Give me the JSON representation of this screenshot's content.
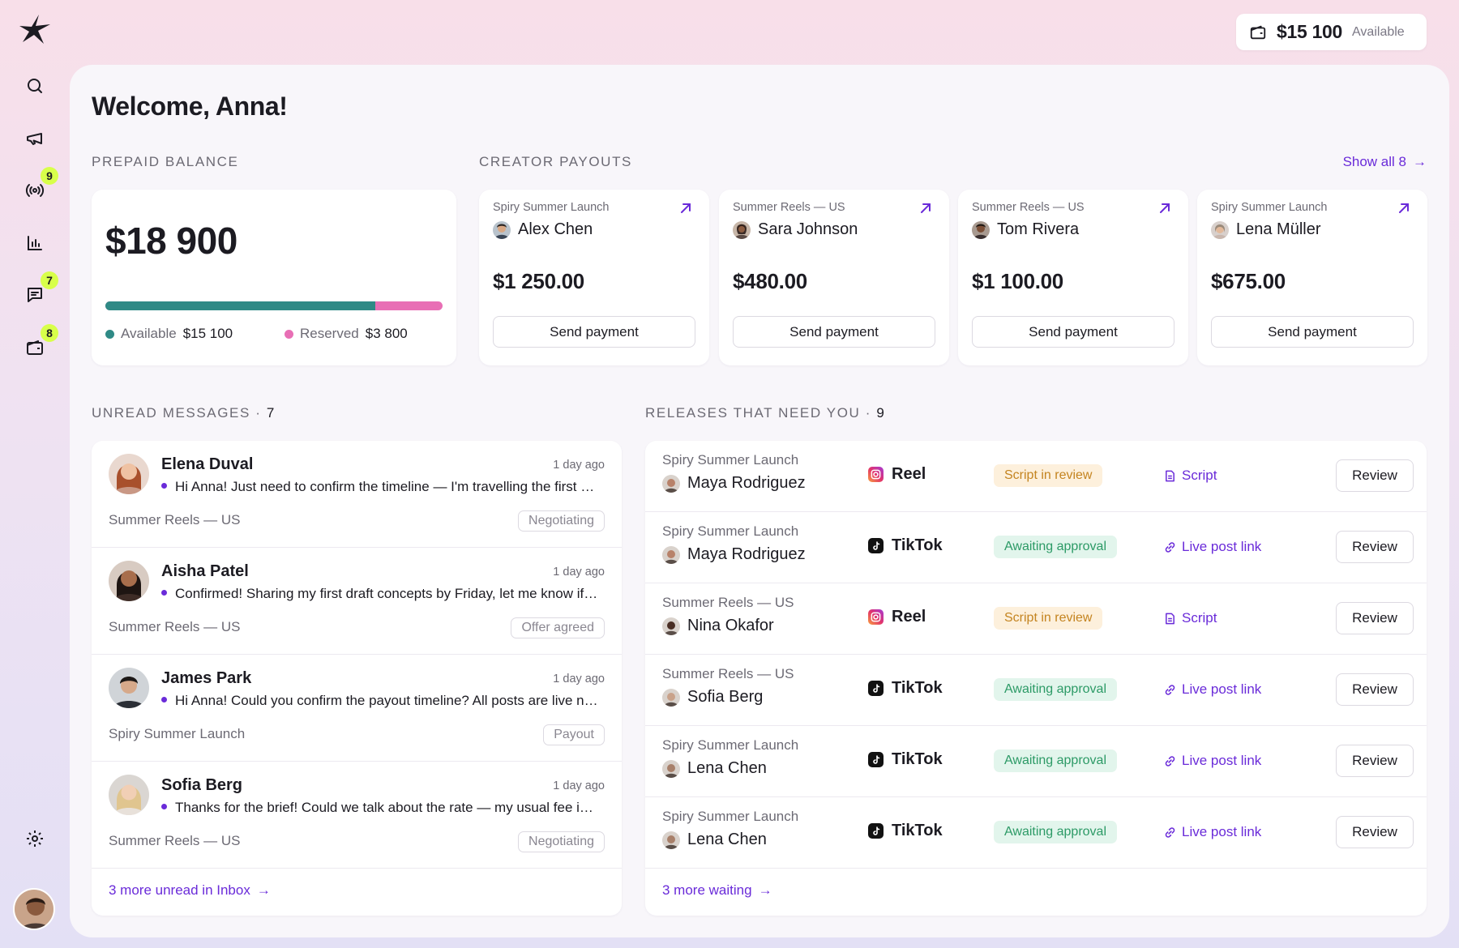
{
  "sidebar": {
    "logo": "star-logo",
    "items": [
      {
        "name": "search",
        "icon": "search-icon",
        "badge": null
      },
      {
        "name": "campaigns",
        "icon": "megaphone-icon",
        "badge": null
      },
      {
        "name": "broadcast",
        "icon": "broadcast-icon",
        "badge": "9"
      },
      {
        "name": "analytics",
        "icon": "bar-chart-icon",
        "badge": null
      },
      {
        "name": "messages",
        "icon": "message-icon",
        "badge": "7"
      },
      {
        "name": "wallet",
        "icon": "wallet-icon",
        "badge": "8"
      }
    ],
    "settings_icon": "gear-icon"
  },
  "top_balance": {
    "amount": "$15 100",
    "label": "Available"
  },
  "welcome": "Welcome, Anna!",
  "prepaid": {
    "section_label": "PREPAID BALANCE",
    "amount": "$18 900",
    "available_fraction": 0.8,
    "available_label": "Available",
    "available_value": "$15 100",
    "reserved_label": "Reserved",
    "reserved_value": "$3 800",
    "colors": {
      "available": "#2f8a86",
      "reserved": "#e86fb5"
    }
  },
  "payouts": {
    "section_label": "CREATOR PAYOUTS",
    "show_all": "Show all 8",
    "cards": [
      {
        "campaign": "Spiry Summer Launch",
        "name": "Alex Chen",
        "amount": "$1 250.00",
        "button": "Send payment"
      },
      {
        "campaign": "Summer Reels — US",
        "name": "Sara Johnson",
        "amount": "$480.00",
        "button": "Send payment"
      },
      {
        "campaign": "Summer Reels — US",
        "name": "Tom Rivera",
        "amount": "$1 100.00",
        "button": "Send payment"
      },
      {
        "campaign": "Spiry Summer Launch",
        "name": "Lena Müller",
        "amount": "$675.00",
        "button": "Send payment"
      }
    ]
  },
  "messages": {
    "section_label": "UNREAD MESSAGES",
    "count": "7",
    "items": [
      {
        "name": "Elena Duval",
        "time": "1 day ago",
        "text": "Hi Anna! Just need to confirm the timeline — I'm travelling the first week of next month so I'd like to lock dates",
        "campaign": "Summer Reels — US",
        "tag": "Negotiating"
      },
      {
        "name": "Aisha Patel",
        "time": "1 day ago",
        "text": "Confirmed! Sharing my first draft concepts by Friday, let me know if that works",
        "campaign": "Summer Reels — US",
        "tag": "Offer agreed"
      },
      {
        "name": "James Park",
        "time": "1 day ago",
        "text": "Hi Anna! Could you confirm the payout timeline? All posts are live now",
        "campaign": "Spiry Summer Launch",
        "tag": "Payout"
      },
      {
        "name": "Sofia Berg",
        "time": "1 day ago",
        "text": "Thanks for the brief! Could we talk about the rate — my usual fee is a bit higher",
        "campaign": "Summer Reels — US",
        "tag": "Negotiating"
      }
    ],
    "footer_link": "3 more unread in Inbox"
  },
  "releases": {
    "section_label": "RELEASES THAT NEED YOU",
    "count": "9",
    "items": [
      {
        "campaign": "Spiry Summer Launch",
        "name": "Maya Rodriguez",
        "platform": "Reel",
        "status": "Script in review",
        "status_kind": "review",
        "link": "Script",
        "link_icon": "document-icon",
        "button": "Review"
      },
      {
        "campaign": "Spiry Summer Launch",
        "name": "Maya Rodriguez",
        "platform": "TikTok",
        "status": "Awaiting approval",
        "status_kind": "approval",
        "link": "Live post link",
        "link_icon": "link-icon",
        "button": "Review"
      },
      {
        "campaign": "Summer Reels — US",
        "name": "Nina Okafor",
        "platform": "Reel",
        "status": "Script in review",
        "status_kind": "review",
        "link": "Script",
        "link_icon": "document-icon",
        "button": "Review"
      },
      {
        "campaign": "Summer Reels — US",
        "name": "Sofia Berg",
        "platform": "TikTok",
        "status": "Awaiting approval",
        "status_kind": "approval",
        "link": "Live post link",
        "link_icon": "link-icon",
        "button": "Review"
      },
      {
        "campaign": "Spiry Summer Launch",
        "name": "Lena Chen",
        "platform": "TikTok",
        "status": "Awaiting approval",
        "status_kind": "approval",
        "link": "Live post link",
        "link_icon": "link-icon",
        "button": "Review"
      },
      {
        "campaign": "Spiry Summer Launch",
        "name": "Lena Chen",
        "platform": "TikTok",
        "status": "Awaiting approval",
        "status_kind": "approval",
        "link": "Live post link",
        "link_icon": "link-icon",
        "button": "Review"
      }
    ],
    "footer_link": "3 more waiting"
  },
  "accent": "#6a2bd9"
}
